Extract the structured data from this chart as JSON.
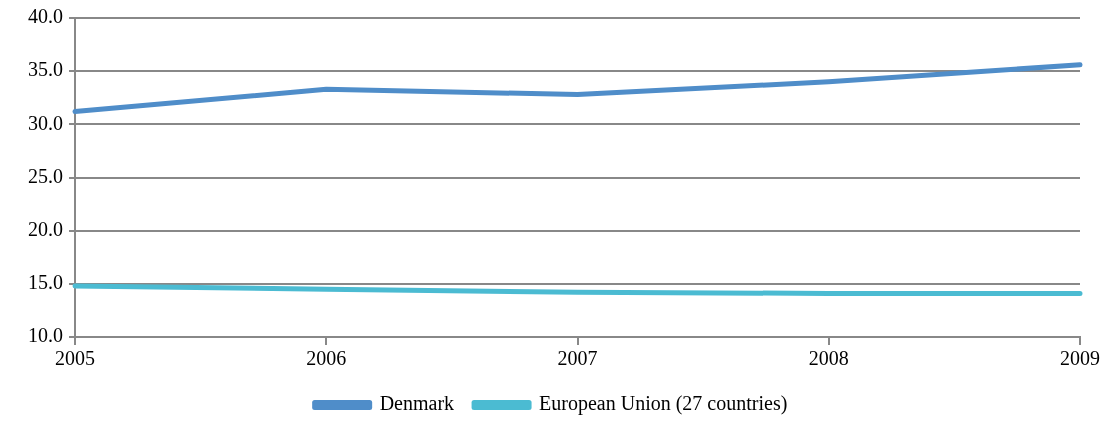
{
  "chart_data": {
    "type": "line",
    "x": [
      2005,
      2006,
      2007,
      2008,
      2009
    ],
    "series": [
      {
        "name": "Denmark",
        "color": "#4f8dc9",
        "values": [
          31.2,
          33.3,
          32.8,
          34.0,
          35.6
        ]
      },
      {
        "name": "European Union (27 countries)",
        "color": "#4bbbd2",
        "values": [
          14.8,
          14.5,
          14.2,
          14.1,
          14.1
        ]
      }
    ],
    "xlim": [
      2005,
      2009
    ],
    "xticks": [
      2005,
      2006,
      2007,
      2008,
      2009
    ],
    "ylim": [
      10,
      40
    ],
    "yticks": [
      {
        "value": 10,
        "label": "10.0"
      },
      {
        "value": 15,
        "label": "15.0"
      },
      {
        "value": 20,
        "label": "20.0"
      },
      {
        "value": 25,
        "label": "25.0"
      },
      {
        "value": 30,
        "label": "30.0"
      },
      {
        "value": 35,
        "label": "35.0"
      },
      {
        "value": 40,
        "label": "40.0"
      }
    ],
    "grid": "y",
    "legend": "bottom",
    "marker": "none",
    "line_style": "solid"
  }
}
